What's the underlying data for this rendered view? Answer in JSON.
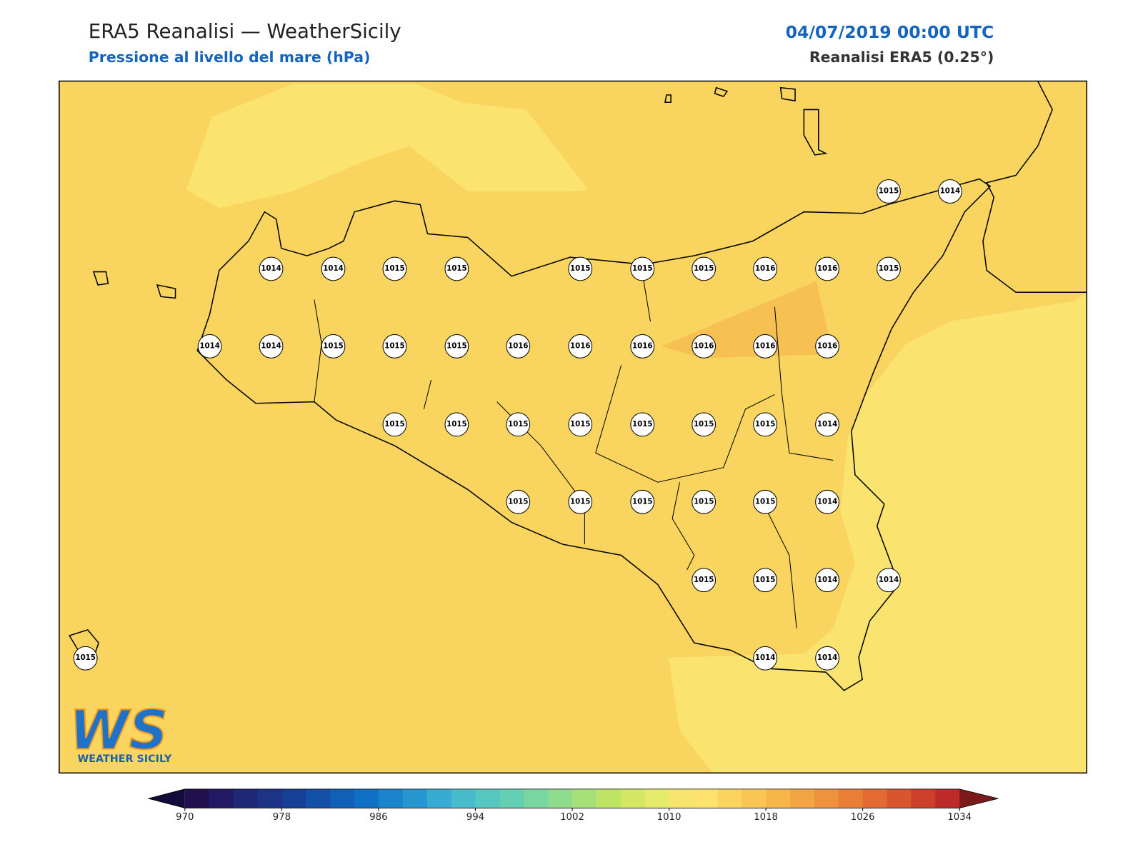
{
  "header": {
    "title": "ERA5 Reanalisi — WeatherSicily",
    "subtitle": "Pressione al livello del mare (hPa)",
    "date": "04/07/2019 00:00 UTC",
    "source": "Reanalisi ERA5 (0.25°)"
  },
  "map": {
    "stations": {
      "values": [
        1015,
        1014,
        1014,
        1014,
        1015,
        1015,
        1015,
        1015,
        1015,
        1016,
        1016,
        1015,
        1014,
        1014,
        1015,
        1015,
        1015,
        1016,
        1016,
        1016,
        1016,
        1016,
        1016,
        1015,
        1015,
        1015,
        1015,
        1015,
        1015,
        1015,
        1014,
        1015,
        1015,
        1015,
        1015,
        1015,
        1014,
        1015,
        1015,
        1014,
        1014,
        1015,
        1014,
        1014
      ]
    }
  },
  "colorbar": {
    "lim": [
      970,
      1034
    ],
    "ticks": [
      970,
      978,
      986,
      994,
      1002,
      1010,
      1018,
      1026,
      1034
    ],
    "colors": [
      "#22104f",
      "#231a66",
      "#1f2777",
      "#1c3386",
      "#163f98",
      "#1350a8",
      "#1160b8",
      "#0f70c6",
      "#1a84cc",
      "#2596d0",
      "#36acd4",
      "#48bccc",
      "#55c6c0",
      "#63cfb3",
      "#78d6a0",
      "#8edb8b",
      "#a5e077",
      "#bde465",
      "#d3e764",
      "#e6ea6a",
      "#f7e46e",
      "#fde36e",
      "#fbd35f",
      "#f9c553",
      "#f7b64a",
      "#f3a544",
      "#ef923d",
      "#ea7e37",
      "#e56932",
      "#d9552e",
      "#cc402b",
      "#bd2a28"
    ],
    "under_color": "#140b3a",
    "over_color": "#7b1a1a"
  },
  "logo": {
    "mark": "WS",
    "name": "WEATHER SICILY"
  }
}
